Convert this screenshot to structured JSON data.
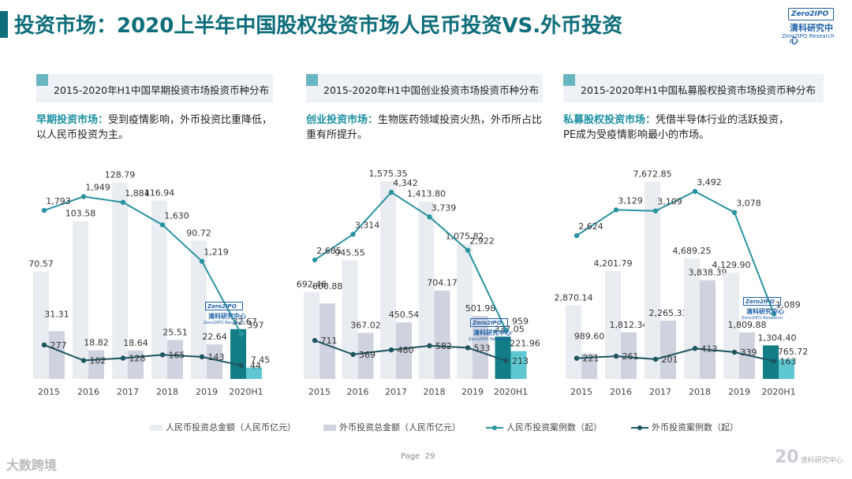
{
  "header": {
    "title": "投资市场：2020上半年中国股权投资市场人民币投资VS.外币投资",
    "logo_badge": "Zero2IPO",
    "logo_cn": "清科研究中心",
    "logo_en": "Zero2IPO Research"
  },
  "panels": [
    {
      "subtitle": "2015-2020年H1中国早期投资市场投资币种分布",
      "desc_highlight": "早期投资市场：",
      "desc_text": "受到疫情影响，外币投资比重降低，以人民币投资为主。"
    },
    {
      "subtitle": "2015-2020年H1中国创业投资市场投资币种分布",
      "desc_highlight": "创业投资市场：",
      "desc_text": "生物医药领域投资火热，外币所占比重有所提升。"
    },
    {
      "subtitle": "2015-2020年H1中国私募股权投资市场投资币种分布",
      "desc_highlight": "私募股权投资市场：",
      "desc_text": "凭借半导体行业的活跃投资，PE成为受疫情影响最小的市场。"
    }
  ],
  "chart_data": [
    {
      "type": "bar",
      "title": "2015-2020年H1中国早期投资市场投资币种分布",
      "categories": [
        "2015",
        "2016",
        "2017",
        "2018",
        "2019",
        "2020H1"
      ],
      "series": [
        {
          "name": "人民币投资总金额（人民币亿元）",
          "kind": "bar",
          "values": [
            70.57,
            103.58,
            128.79,
            116.94,
            90.72,
            32.67
          ],
          "labels": [
            "70.57",
            "103.58",
            "128.79",
            "116.94",
            "90.72",
            "32.67"
          ]
        },
        {
          "name": "外币投资总金额（人民币亿元）",
          "kind": "bar",
          "values": [
            31.31,
            18.82,
            18.64,
            25.51,
            22.64,
            7.45
          ],
          "labels": [
            "31.31",
            "18.82",
            "18.64",
            "25.51",
            "22.64",
            "7.45"
          ]
        },
        {
          "name": "人民币投资案例数（起）",
          "kind": "line",
          "values": [
            1793,
            1949,
            1884,
            1630,
            1219,
            397
          ],
          "labels": [
            "1,793",
            "1,949",
            "1,884",
            "1,630",
            "1,219",
            "397"
          ]
        },
        {
          "name": "外币投资案例数（起）",
          "kind": "line",
          "values": [
            277,
            102,
            128,
            165,
            143,
            44
          ],
          "labels": [
            "277",
            "102",
            "128",
            "165",
            "143",
            "44"
          ]
        }
      ],
      "bar_max": 140,
      "line_max": 2300
    },
    {
      "type": "bar",
      "title": "2015-2020年H1中国创业投资市场投资币种分布",
      "categories": [
        "2015",
        "2016",
        "2017",
        "2018",
        "2019",
        "2020H1"
      ],
      "series": [
        {
          "name": "人民币投资总金额（人民币亿元）",
          "kind": "bar",
          "values": [
            692.46,
            945.55,
            1575.35,
            1413.8,
            1075.82,
            337.05
          ],
          "labels": [
            "692.46",
            "945.55",
            "1,575.35",
            "1,413.80",
            "1,075.82",
            "337.05"
          ]
        },
        {
          "name": "外币投资总金额（人民币亿元）",
          "kind": "bar",
          "values": [
            600.88,
            367.02,
            450.54,
            704.17,
            501.98,
            221.96
          ],
          "labels": [
            "600.88",
            "367.02",
            "450.54",
            "704.17",
            "501.98",
            "221.96"
          ]
        },
        {
          "name": "人民币投资案例数（起）",
          "kind": "line",
          "values": [
            2685,
            3314,
            4342,
            3739,
            2922,
            959
          ],
          "labels": [
            "2,685",
            "3,314",
            "4,342",
            "3,739",
            "2,922",
            "959"
          ]
        },
        {
          "name": "外币投资案例数（起）",
          "kind": "line",
          "values": [
            711,
            369,
            480,
            582,
            533,
            213
          ],
          "labels": [
            "711",
            "369",
            "480",
            "582",
            "533",
            "213"
          ]
        }
      ],
      "bar_max": 1700,
      "line_max": 5000
    },
    {
      "type": "bar",
      "title": "2015-2020年H1中国私募股权投资市场投资币种分布",
      "categories": [
        "2015",
        "2016",
        "2017",
        "2018",
        "2019",
        "2020H1"
      ],
      "series": [
        {
          "name": "人民币投资总金额（人民币亿元）",
          "kind": "bar",
          "values": [
            2870.14,
            4201.79,
            7672.85,
            4689.25,
            4129.9,
            1304.4
          ],
          "labels": [
            "2,870.14",
            "4,201.79",
            "7,672.85",
            "4,689.25",
            "4,129.90",
            "1,304.40"
          ]
        },
        {
          "name": "外币投资总金额（人民币亿元）",
          "kind": "bar",
          "values": [
            989.6,
            1812.34,
            2265.33,
            3838.39,
            1809.88,
            765.72
          ],
          "labels": [
            "989.60",
            "1,812.34",
            "2,265.33",
            "3,838.39",
            "1,809.88",
            "765.72"
          ]
        },
        {
          "name": "人民币投资案例数（起）",
          "kind": "line",
          "values": [
            2624,
            3129,
            3109,
            3492,
            3078,
            1089
          ],
          "labels": [
            "2,624",
            "3,129",
            "3,109",
            "3,492",
            "3,078",
            "1,089"
          ]
        },
        {
          "name": "外币投资案例数（起）",
          "kind": "line",
          "values": [
            221,
            261,
            201,
            413,
            339,
            163
          ],
          "labels": [
            "221",
            "261",
            "201",
            "413",
            "339",
            "163"
          ]
        }
      ],
      "bar_max": 8300,
      "line_max": 4000
    }
  ],
  "legend": [
    {
      "label": "人民币投资总金额（人民币亿元）",
      "kind": "bar",
      "color": "#e9ecf1"
    },
    {
      "label": "外币投资总金额（人民币亿元）",
      "kind": "bar",
      "color": "#cfd3df"
    },
    {
      "label": "人民币投资案例数（起）",
      "kind": "line",
      "color": "#2a93a0"
    },
    {
      "label": "外币投资案例数（起）",
      "kind": "line",
      "color": "#1c5560"
    }
  ],
  "colors": {
    "rmb_bar": "#e9ecf1",
    "fx_bar": "#cfd3df",
    "last_rmb_bar": "#127c87",
    "last_fx_bar": "#5ec7d2",
    "rmb_line": "#2a93a0",
    "fx_line": "#1c5560",
    "title": "#0e6d7a"
  },
  "footer": {
    "page_label": "Page",
    "page_number": "29",
    "watermark": "大数跨境",
    "brand_number": "20",
    "brand_text": "清科研究中心"
  }
}
